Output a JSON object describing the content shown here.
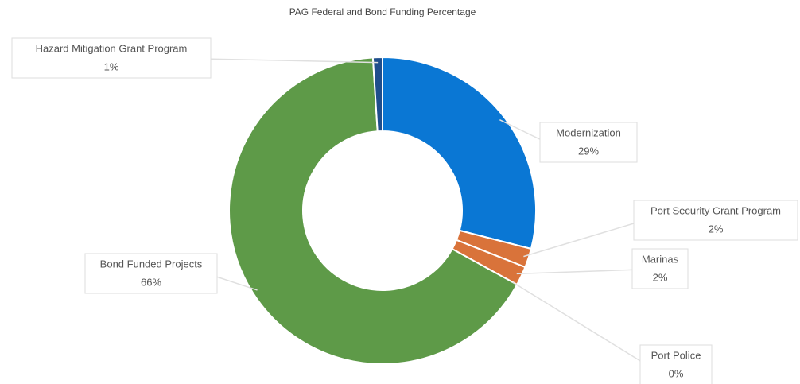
{
  "chart_data": {
    "type": "donut",
    "title": "PAG Federal and Bond Funding Percentage",
    "categories": [
      "Modernization",
      "Port Security Grant Program",
      "Marinas",
      "Port Police",
      "Bond Funded Projects",
      "Hazard Mitigation Grant Program"
    ],
    "values": [
      29,
      2,
      2,
      0,
      66,
      1
    ],
    "value_labels": [
      "29%",
      "2%",
      "2%",
      "0%",
      "66%",
      "1%"
    ],
    "colors": [
      "#0a77d4",
      "#d9733a",
      "#d9733a",
      "#bfbfbf",
      "#5e9a48",
      "#1f4e8c"
    ]
  }
}
